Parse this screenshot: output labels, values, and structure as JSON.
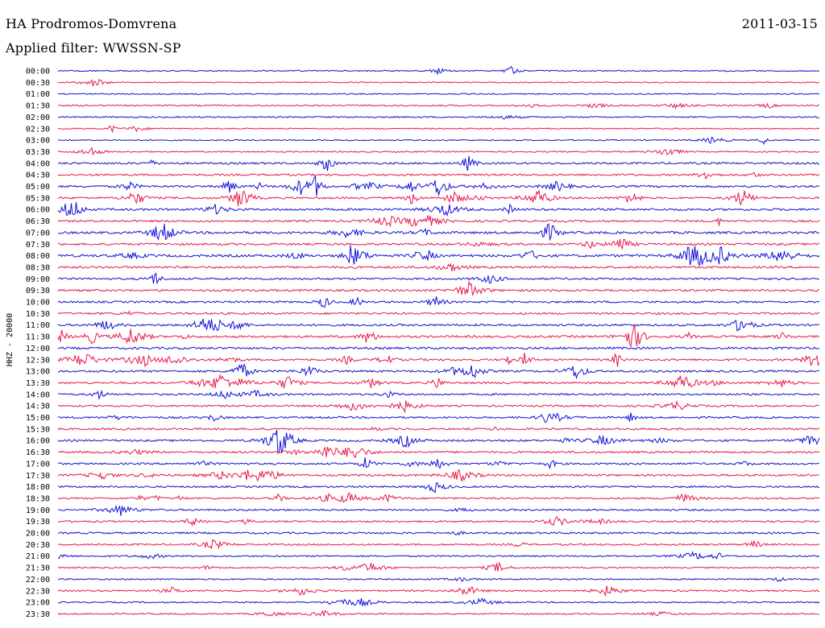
{
  "header": {
    "station": "HA Prodromos-Domvrena",
    "date": "2011-03-15",
    "filter": "Applied filter: WWSSN-SP"
  },
  "chart_data": {
    "type": "line",
    "description_axis_label": "HHZ - 20000",
    "row_labels": [
      "00:00",
      "00:30",
      "01:00",
      "01:30",
      "02:00",
      "02:30",
      "03:00",
      "03:30",
      "04:00",
      "04:30",
      "05:00",
      "05:30",
      "06:00",
      "06:30",
      "07:00",
      "07:30",
      "08:00",
      "08:30",
      "09:00",
      "09:30",
      "10:00",
      "10:30",
      "11:00",
      "11:30",
      "12:00",
      "12:30",
      "13:00",
      "13:30",
      "14:00",
      "14:30",
      "15:00",
      "15:30",
      "16:00",
      "16:30",
      "17:00",
      "17:30",
      "18:00",
      "18:30",
      "19:00",
      "19:30",
      "20:00",
      "20:30",
      "21:00",
      "21:30",
      "22:00",
      "22:30",
      "23:00",
      "23:30"
    ],
    "colors": {
      "even": "#1010d8",
      "odd": "#e8184a"
    },
    "activity": [
      0.1,
      0.05,
      0.1,
      0.2,
      0.2,
      0.1,
      0.1,
      0.15,
      0.5,
      0.45,
      0.55,
      0.5,
      0.6,
      0.5,
      0.7,
      0.6,
      0.75,
      0.6,
      0.5,
      0.55,
      0.5,
      0.5,
      0.55,
      0.6,
      0.6,
      0.55,
      0.55,
      0.5,
      0.4,
      0.4,
      0.45,
      0.45,
      0.5,
      0.5,
      0.45,
      0.5,
      0.4,
      0.35,
      0.4,
      0.35,
      0.45,
      0.35,
      0.25,
      0.2,
      0.2,
      0.3,
      0.2,
      0.2
    ]
  }
}
